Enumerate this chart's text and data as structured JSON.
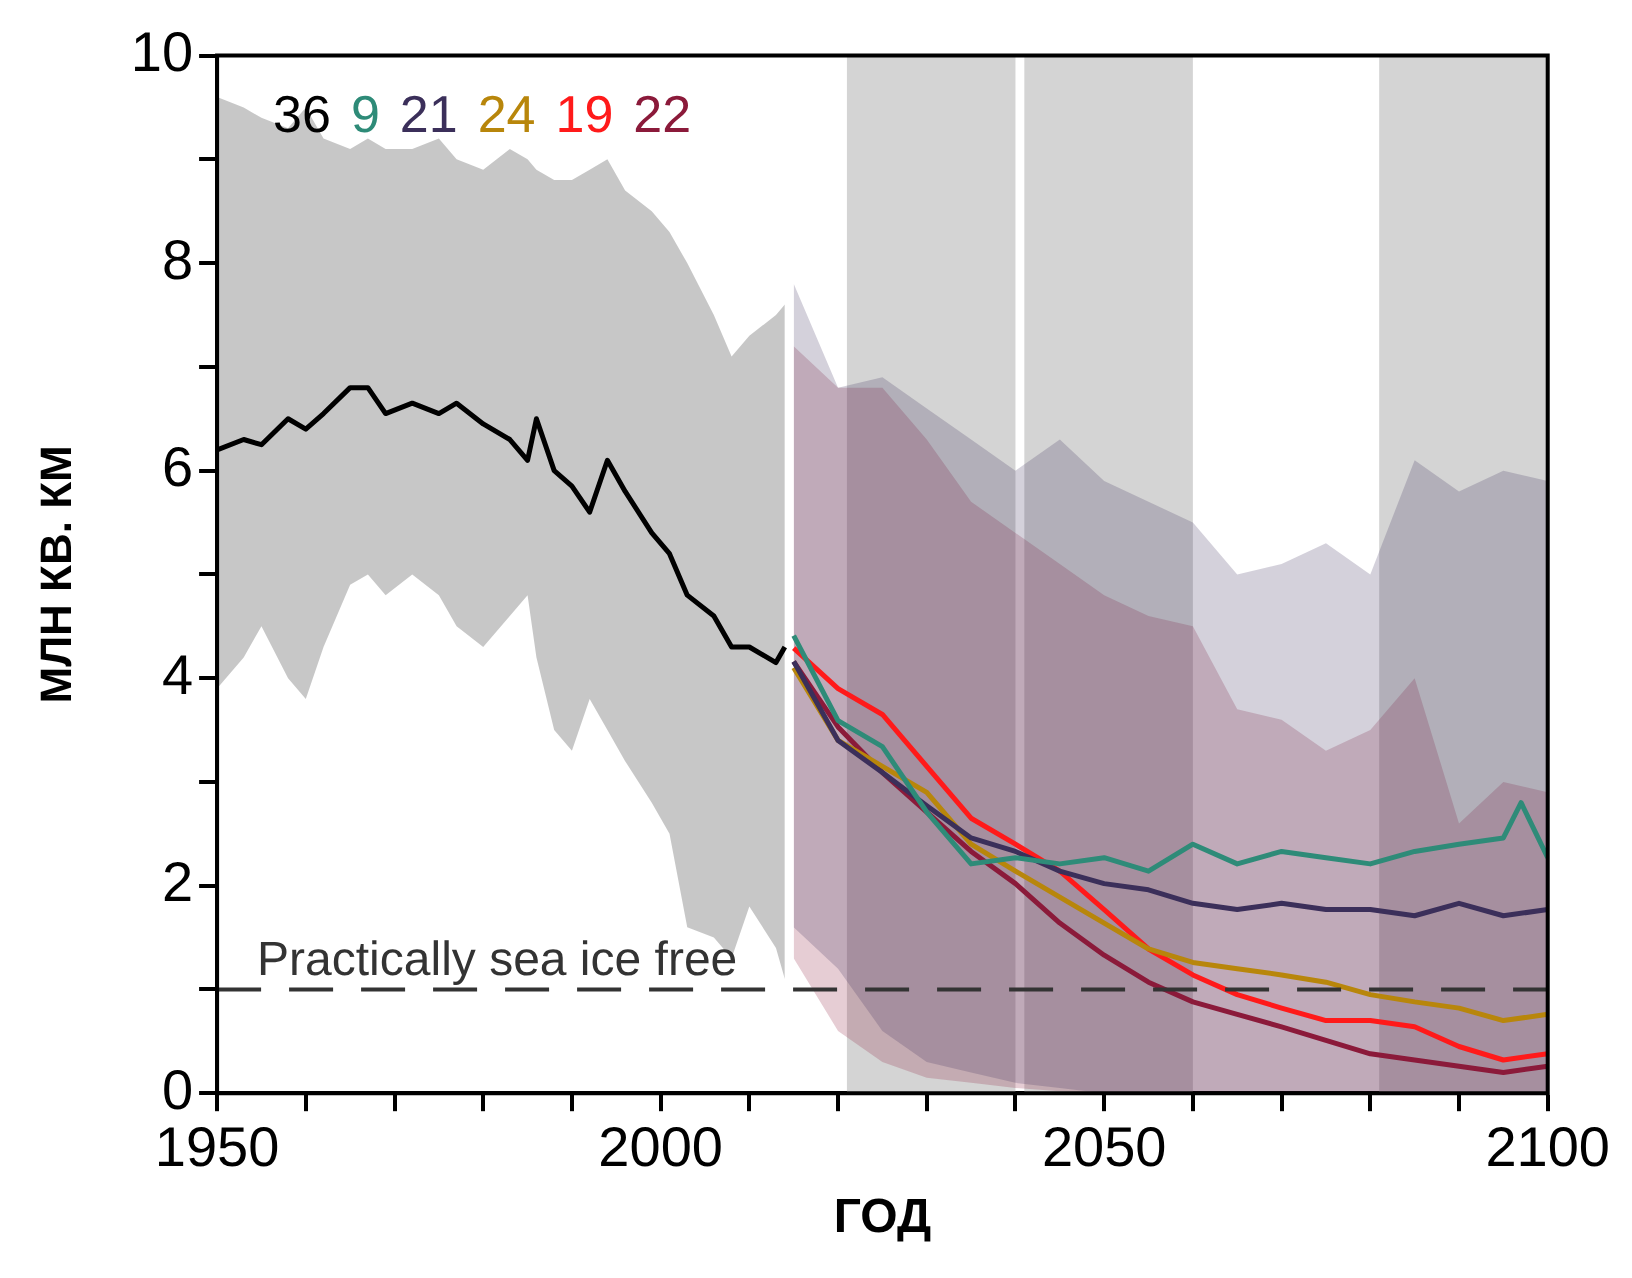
{
  "chart_data": {
    "type": "line",
    "xlabel": "ГОД",
    "ylabel": "МЛН КВ. КМ",
    "xlim": [
      1950,
      2100
    ],
    "ylim": [
      0,
      10
    ],
    "xticks": [
      1950,
      {
        "value": 1960,
        "label": null
      },
      {
        "value": 1970,
        "label": null
      },
      {
        "value": 1980,
        "label": null
      },
      {
        "value": 1990,
        "label": null
      },
      2000,
      {
        "value": 2010,
        "label": null
      },
      {
        "value": 2020,
        "label": null
      },
      {
        "value": 2030,
        "label": null
      },
      {
        "value": 2040,
        "label": null
      },
      2050,
      {
        "value": 2060,
        "label": null
      },
      {
        "value": 2070,
        "label": null
      },
      {
        "value": 2080,
        "label": null
      },
      {
        "value": 2090,
        "label": null
      },
      2100
    ],
    "yticks": [
      0,
      {
        "value": 1,
        "label": null
      },
      2,
      {
        "value": 3,
        "label": null
      },
      4,
      {
        "value": 5,
        "label": null
      },
      6,
      {
        "value": 7,
        "label": null
      },
      8,
      {
        "value": 9,
        "label": null
      },
      10
    ],
    "grid": false,
    "legend": "top left",
    "marker": "none",
    "line_style": "solid",
    "bands": [
      {
        "axis": "x",
        "from": 2021,
        "to": 2040,
        "color": "#d4d4d4"
      },
      {
        "axis": "x",
        "from": 2041,
        "to": 2060,
        "color": "#d4d4d4"
      },
      {
        "axis": "x",
        "from": 2081,
        "to": 2100,
        "color": "#d4d4d4"
      }
    ],
    "ref_lines": [
      {
        "axis": "y",
        "value": 1,
        "label": "Practically sea ice free",
        "color": "#333333",
        "line_style": "dashed"
      }
    ],
    "series": [
      {
        "name": "36",
        "color": "#000000",
        "x": [
          1950,
          1953,
          1955,
          1958,
          1960,
          1962,
          1965,
          1967,
          1969,
          1972,
          1975,
          1977,
          1980,
          1983,
          1985,
          1986,
          1988,
          1990,
          1992,
          1994,
          1996,
          1999,
          2001,
          2003,
          2006,
          2008,
          2010,
          2013,
          2014
        ],
        "values": [
          6.2,
          6.3,
          6.25,
          6.5,
          6.4,
          6.55,
          6.8,
          6.8,
          6.55,
          6.65,
          6.55,
          6.65,
          6.45,
          6.3,
          6.1,
          6.5,
          6.0,
          5.85,
          5.6,
          6.1,
          5.8,
          5.4,
          5.2,
          4.8,
          4.6,
          4.3,
          4.3,
          4.15,
          4.3
        ],
        "lower": [
          3.9,
          4.2,
          4.5,
          4.0,
          3.8,
          4.3,
          4.9,
          5.0,
          4.8,
          5.0,
          4.8,
          4.5,
          4.3,
          4.6,
          4.8,
          4.2,
          3.5,
          3.3,
          3.8,
          3.5,
          3.2,
          2.8,
          2.5,
          1.6,
          1.5,
          1.3,
          1.8,
          1.4,
          1.1
        ],
        "upper": [
          9.6,
          9.5,
          9.4,
          9.3,
          9.5,
          9.2,
          9.1,
          9.2,
          9.1,
          9.1,
          9.2,
          9.0,
          8.9,
          9.1,
          9.0,
          8.9,
          8.8,
          8.8,
          8.9,
          9.0,
          8.7,
          8.5,
          8.3,
          8.0,
          7.5,
          7.1,
          7.3,
          7.5,
          7.6
        ]
      },
      {
        "name": "9",
        "color": "#2e8b78",
        "x": [
          2015,
          2020,
          2025,
          2030,
          2035,
          2040,
          2045,
          2050,
          2055,
          2060,
          2065,
          2070,
          2075,
          2080,
          2085,
          2090,
          2095,
          2097,
          2100
        ],
        "values": [
          4.41,
          3.59,
          3.34,
          2.71,
          2.21,
          2.27,
          2.21,
          2.27,
          2.14,
          2.4,
          2.21,
          2.33,
          2.27,
          2.21,
          2.33,
          2.4,
          2.46,
          2.8,
          2.27
        ]
      },
      {
        "name": "21",
        "color": "#3b2f5a",
        "x": [
          2015,
          2020,
          2025,
          2030,
          2035,
          2040,
          2045,
          2050,
          2055,
          2060,
          2065,
          2070,
          2075,
          2080,
          2085,
          2090,
          2095,
          2100
        ],
        "values": [
          4.16,
          3.4,
          3.09,
          2.77,
          2.46,
          2.33,
          2.14,
          2.02,
          1.96,
          1.83,
          1.77,
          1.83,
          1.77,
          1.77,
          1.71,
          1.83,
          1.71,
          1.77
        ],
        "lower": [
          1.6,
          1.2,
          0.6,
          0.3,
          0.2,
          0.1,
          0.05,
          0,
          0,
          0,
          0,
          0,
          0,
          0,
          0,
          0,
          0,
          0
        ],
        "upper": [
          7.8,
          6.8,
          6.9,
          6.6,
          6.3,
          6.0,
          6.3,
          5.9,
          5.7,
          5.5,
          5.0,
          5.1,
          5.3,
          5.0,
          6.1,
          5.8,
          6.0,
          5.9
        ]
      },
      {
        "name": "24",
        "color": "#b8860b",
        "x": [
          2015,
          2020,
          2025,
          2030,
          2035,
          2040,
          2045,
          2050,
          2055,
          2060,
          2065,
          2070,
          2075,
          2080,
          2085,
          2090,
          2095,
          2100
        ],
        "values": [
          4.1,
          3.4,
          3.15,
          2.9,
          2.4,
          2.14,
          1.89,
          1.64,
          1.39,
          1.26,
          1.2,
          1.14,
          1.07,
          0.95,
          0.88,
          0.82,
          0.7,
          0.76
        ]
      },
      {
        "name": "19",
        "color": "#ff1a1a",
        "x": [
          2015,
          2020,
          2025,
          2030,
          2035,
          2040,
          2045,
          2050,
          2055,
          2060,
          2065,
          2070,
          2075,
          2080,
          2085,
          2090,
          2095,
          2100
        ],
        "values": [
          4.29,
          3.9,
          3.65,
          3.15,
          2.65,
          2.4,
          2.14,
          1.77,
          1.39,
          1.14,
          0.95,
          0.82,
          0.7,
          0.7,
          0.64,
          0.45,
          0.32,
          0.38
        ]
      },
      {
        "name": "22",
        "color": "#8b1a3a",
        "x": [
          2015,
          2020,
          2025,
          2030,
          2035,
          2040,
          2045,
          2050,
          2055,
          2060,
          2065,
          2070,
          2075,
          2080,
          2085,
          2090,
          2095,
          2100
        ],
        "values": [
          4.16,
          3.53,
          3.09,
          2.71,
          2.33,
          2.02,
          1.64,
          1.33,
          1.07,
          0.88,
          0.76,
          0.64,
          0.51,
          0.38,
          0.32,
          0.26,
          0.2,
          0.26
        ],
        "lower": [
          1.3,
          0.6,
          0.3,
          0.15,
          0.1,
          0.05,
          0.02,
          0,
          0,
          0,
          0,
          0,
          0,
          0,
          0,
          0,
          0,
          0
        ],
        "upper": [
          7.2,
          6.8,
          6.8,
          6.3,
          5.7,
          5.4,
          5.1,
          4.8,
          4.6,
          4.5,
          3.7,
          3.6,
          3.3,
          3.5,
          4.0,
          2.6,
          3.0,
          2.9
        ]
      }
    ]
  }
}
